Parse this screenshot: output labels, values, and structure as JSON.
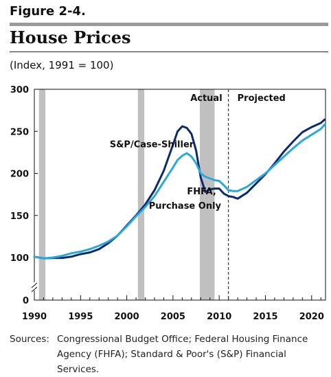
{
  "figure_label": "Figure 2-4.",
  "title": "House Prices",
  "subtitle": "(Index, 1991 = 100)",
  "source_label": "Sources:",
  "source_text": "Congressional Budget Office; Federal Housing Finance Agency (FHFA); Standard & Poor's (S&P) Financial Services.",
  "colors": {
    "case_shiller": "#0b2a6e",
    "fhfa": "#2aa8dc",
    "recession": "#c0c0c0"
  },
  "chart_data": {
    "type": "line",
    "xlim": [
      1990,
      2021.5
    ],
    "ylim": [
      0,
      300
    ],
    "y_ticks": [
      0,
      100,
      150,
      200,
      250,
      300
    ],
    "x_ticks": [
      1990,
      1995,
      2000,
      2005,
      2010,
      2015,
      2020
    ],
    "axis_break": true,
    "grid": false,
    "recessions": [
      [
        1990.5,
        1991.2
      ],
      [
        2001.2,
        2001.9
      ],
      [
        2007.9,
        2009.5
      ]
    ],
    "divider_x": 2011.0,
    "region_labels": {
      "actual": "Actual",
      "projected": "Projected"
    },
    "series": [
      {
        "name": "S&P/Case-Shiller",
        "color": "#0b2a6e",
        "x": [
          1990,
          1990.5,
          1991,
          1992,
          1993,
          1994,
          1995,
          1996,
          1997,
          1998,
          1999,
          2000,
          2001,
          2002,
          2003,
          2004,
          2005,
          2005.5,
          2006,
          2006.5,
          2007,
          2007.5,
          2008,
          2008.5,
          2009,
          2009.5,
          2010,
          2010.5,
          2011,
          2011.5,
          2012,
          2013,
          2014,
          2015,
          2016,
          2017,
          2018,
          2019,
          2020,
          2021,
          2021.4
        ],
        "y": [
          101,
          100,
          98,
          99,
          99,
          101,
          104,
          106,
          110,
          117,
          126,
          138,
          150,
          163,
          180,
          203,
          234,
          250,
          256,
          254,
          247,
          227,
          195,
          178,
          181,
          182,
          182,
          176,
          173,
          172,
          170,
          177,
          188,
          199,
          212,
          226,
          238,
          249,
          255,
          260,
          264
        ]
      },
      {
        "name": "FHFA, Purchase Only",
        "color": "#2aa8dc",
        "x": [
          1990,
          1990.5,
          1991,
          1992,
          1993,
          1994,
          1995,
          1996,
          1997,
          1998,
          1999,
          2000,
          2001,
          2002,
          2003,
          2004,
          2005,
          2005.5,
          2006,
          2006.5,
          2007,
          2007.5,
          2008,
          2008.5,
          2009,
          2009.5,
          2010,
          2010.5,
          2011,
          2011.5,
          2012,
          2013,
          2014,
          2015,
          2016,
          2017,
          2018,
          2019,
          2020,
          2021,
          2021.4
        ],
        "y": [
          101,
          100,
          98,
          100,
          102,
          105,
          107,
          110,
          114,
          119,
          126,
          137,
          149,
          160,
          173,
          190,
          207,
          216,
          221,
          224,
          220,
          212,
          200,
          196,
          194,
          192,
          191,
          186,
          180,
          179,
          179,
          184,
          192,
          200,
          210,
          220,
          230,
          239,
          246,
          253,
          258
        ]
      }
    ],
    "series_labels": [
      {
        "text": "S&P/Case-Shiller",
        "x": 2002.7,
        "y": 231,
        "anchor": "middle"
      },
      {
        "text": "FHFA,",
        "x": 2008.1,
        "y": 175,
        "anchor": "middle"
      },
      {
        "text": "Purchase Only",
        "x": 2006.3,
        "y": 158,
        "anchor": "middle"
      }
    ]
  }
}
